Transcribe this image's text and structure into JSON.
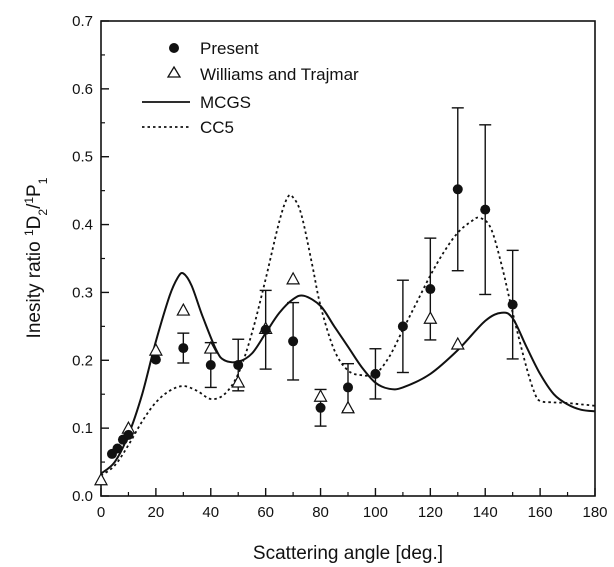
{
  "chart_data": {
    "type": "scatter",
    "xlabel": "Scattering angle [deg.]",
    "ylabel_parts": {
      "prefix": "Inesity ratio ",
      "sup1": "1",
      "mid1": "D",
      "sub1": "2",
      "mid2": "/",
      "sup2": "1",
      "mid3": "P",
      "sub2": "1"
    },
    "xlim": [
      0,
      180
    ],
    "ylim": [
      0.0,
      0.7
    ],
    "xticks": [
      "0",
      "20",
      "40",
      "60",
      "80",
      "100",
      "120",
      "140",
      "160",
      "180"
    ],
    "yticks": [
      "0.0",
      "0.1",
      "0.2",
      "0.3",
      "0.4",
      "0.5",
      "0.6",
      "0.7"
    ],
    "grid": false,
    "legend_position": "top-left",
    "series": [
      {
        "name": "Present",
        "marker": "filled-circle",
        "points": [
          {
            "x": 4,
            "y": 0.062
          },
          {
            "x": 6,
            "y": 0.07
          },
          {
            "x": 8,
            "y": 0.083
          },
          {
            "x": 10,
            "y": 0.09
          },
          {
            "x": 20,
            "y": 0.201
          },
          {
            "x": 30,
            "y": 0.218,
            "err": 0.022
          },
          {
            "x": 40,
            "y": 0.193,
            "err": 0.033
          },
          {
            "x": 50,
            "y": 0.193,
            "err": 0.038
          },
          {
            "x": 60,
            "y": 0.245,
            "err": 0.058
          },
          {
            "x": 70,
            "y": 0.228,
            "err": 0.057
          },
          {
            "x": 80,
            "y": 0.13,
            "err": 0.027
          },
          {
            "x": 90,
            "y": 0.16,
            "err": 0.035
          },
          {
            "x": 100,
            "y": 0.18,
            "err": 0.037
          },
          {
            "x": 110,
            "y": 0.25,
            "err": 0.068
          },
          {
            "x": 120,
            "y": 0.305,
            "err": 0.075
          },
          {
            "x": 130,
            "y": 0.452,
            "err": 0.12
          },
          {
            "x": 140,
            "y": 0.422,
            "err": 0.125
          },
          {
            "x": 150,
            "y": 0.282,
            "err": 0.08
          }
        ]
      },
      {
        "name": "Williams and Trajmar",
        "marker": "open-triangle",
        "points": [
          {
            "x": 0,
            "y": 0.024
          },
          {
            "x": 10,
            "y": 0.1
          },
          {
            "x": 20,
            "y": 0.215
          },
          {
            "x": 30,
            "y": 0.274
          },
          {
            "x": 40,
            "y": 0.218
          },
          {
            "x": 50,
            "y": 0.168
          },
          {
            "x": 60,
            "y": 0.247
          },
          {
            "x": 70,
            "y": 0.32
          },
          {
            "x": 80,
            "y": 0.147
          },
          {
            "x": 90,
            "y": 0.13
          },
          {
            "x": 120,
            "y": 0.262
          },
          {
            "x": 130,
            "y": 0.224
          }
        ]
      },
      {
        "name": "MCGS",
        "style": "solid-line",
        "points": [
          {
            "x": 0,
            "y": 0.033
          },
          {
            "x": 5,
            "y": 0.05
          },
          {
            "x": 10,
            "y": 0.09
          },
          {
            "x": 15,
            "y": 0.15
          },
          {
            "x": 20,
            "y": 0.228
          },
          {
            "x": 25,
            "y": 0.295
          },
          {
            "x": 28,
            "y": 0.322
          },
          {
            "x": 30,
            "y": 0.328
          },
          {
            "x": 33,
            "y": 0.31
          },
          {
            "x": 37,
            "y": 0.265
          },
          {
            "x": 42,
            "y": 0.215
          },
          {
            "x": 45,
            "y": 0.2
          },
          {
            "x": 50,
            "y": 0.198
          },
          {
            "x": 55,
            "y": 0.21
          },
          {
            "x": 60,
            "y": 0.24
          },
          {
            "x": 65,
            "y": 0.27
          },
          {
            "x": 70,
            "y": 0.29
          },
          {
            "x": 74,
            "y": 0.295
          },
          {
            "x": 80,
            "y": 0.28
          },
          {
            "x": 85,
            "y": 0.25
          },
          {
            "x": 90,
            "y": 0.22
          },
          {
            "x": 95,
            "y": 0.19
          },
          {
            "x": 100,
            "y": 0.167
          },
          {
            "x": 105,
            "y": 0.158
          },
          {
            "x": 110,
            "y": 0.16
          },
          {
            "x": 120,
            "y": 0.18
          },
          {
            "x": 130,
            "y": 0.215
          },
          {
            "x": 140,
            "y": 0.258
          },
          {
            "x": 146,
            "y": 0.27
          },
          {
            "x": 150,
            "y": 0.262
          },
          {
            "x": 155,
            "y": 0.22
          },
          {
            "x": 160,
            "y": 0.18
          },
          {
            "x": 165,
            "y": 0.15
          },
          {
            "x": 170,
            "y": 0.135
          },
          {
            "x": 175,
            "y": 0.127
          },
          {
            "x": 180,
            "y": 0.125
          }
        ]
      },
      {
        "name": "CC5",
        "style": "dotted-line",
        "points": [
          {
            "x": 0,
            "y": 0.03
          },
          {
            "x": 5,
            "y": 0.045
          },
          {
            "x": 10,
            "y": 0.075
          },
          {
            "x": 15,
            "y": 0.11
          },
          {
            "x": 20,
            "y": 0.138
          },
          {
            "x": 25,
            "y": 0.155
          },
          {
            "x": 30,
            "y": 0.162
          },
          {
            "x": 35,
            "y": 0.155
          },
          {
            "x": 40,
            "y": 0.143
          },
          {
            "x": 45,
            "y": 0.15
          },
          {
            "x": 50,
            "y": 0.18
          },
          {
            "x": 55,
            "y": 0.24
          },
          {
            "x": 60,
            "y": 0.32
          },
          {
            "x": 65,
            "y": 0.405
          },
          {
            "x": 68,
            "y": 0.44
          },
          {
            "x": 70,
            "y": 0.44
          },
          {
            "x": 73,
            "y": 0.415
          },
          {
            "x": 77,
            "y": 0.34
          },
          {
            "x": 80,
            "y": 0.28
          },
          {
            "x": 85,
            "y": 0.215
          },
          {
            "x": 90,
            "y": 0.185
          },
          {
            "x": 95,
            "y": 0.178
          },
          {
            "x": 100,
            "y": 0.18
          },
          {
            "x": 105,
            "y": 0.205
          },
          {
            "x": 110,
            "y": 0.245
          },
          {
            "x": 115,
            "y": 0.285
          },
          {
            "x": 120,
            "y": 0.325
          },
          {
            "x": 125,
            "y": 0.36
          },
          {
            "x": 130,
            "y": 0.388
          },
          {
            "x": 135,
            "y": 0.405
          },
          {
            "x": 138,
            "y": 0.41
          },
          {
            "x": 142,
            "y": 0.395
          },
          {
            "x": 146,
            "y": 0.34
          },
          {
            "x": 150,
            "y": 0.27
          },
          {
            "x": 155,
            "y": 0.19
          },
          {
            "x": 158,
            "y": 0.152
          },
          {
            "x": 160,
            "y": 0.14
          },
          {
            "x": 165,
            "y": 0.138
          },
          {
            "x": 170,
            "y": 0.137
          },
          {
            "x": 175,
            "y": 0.135
          },
          {
            "x": 180,
            "y": 0.133
          }
        ]
      }
    ]
  }
}
